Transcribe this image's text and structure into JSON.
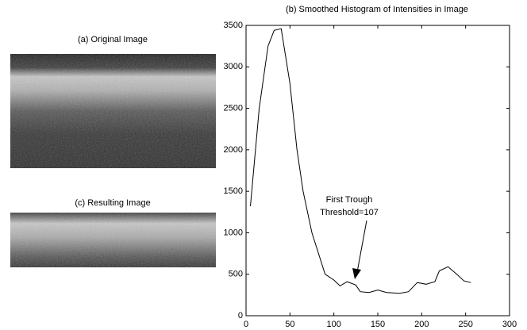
{
  "images": [
    {
      "title": "(a) Original Image"
    },
    {
      "title": "(c) Resulting Image"
    }
  ],
  "chart_data": {
    "type": "line",
    "title": "(b) Smoothed Histogram of Intensities in Image",
    "annotations": [
      "First Trough",
      "Threshold=107"
    ],
    "x": [
      5,
      15,
      25,
      32,
      40,
      50,
      58,
      65,
      75,
      90,
      100,
      107,
      115,
      125,
      130,
      140,
      150,
      160,
      175,
      185,
      195,
      205,
      215,
      220,
      230,
      240,
      248,
      256
    ],
    "values": [
      1320,
      2500,
      3250,
      3440,
      3460,
      2800,
      2000,
      1500,
      1000,
      500,
      430,
      360,
      410,
      370,
      290,
      280,
      310,
      280,
      270,
      290,
      400,
      380,
      410,
      540,
      590,
      500,
      420,
      400
    ],
    "color": "#000000",
    "xlim": [
      0,
      300
    ],
    "xticks": [
      0,
      50,
      100,
      150,
      200,
      250,
      300
    ],
    "ylim": [
      0,
      3500
    ],
    "yticks": [
      0,
      500,
      1000,
      1500,
      2000,
      2500,
      3000,
      3500
    ],
    "grid": false
  }
}
